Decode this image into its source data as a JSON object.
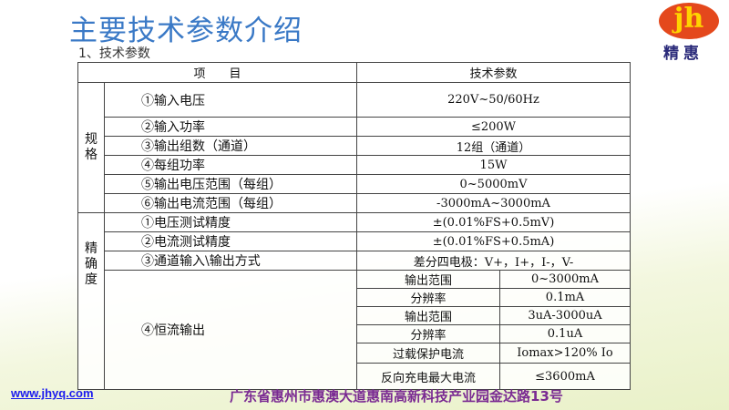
{
  "title": "主要技术参数介绍",
  "subtitle": "1、技术参数",
  "logo": {
    "text": "jh",
    "name": "精惠"
  },
  "table": {
    "headers": [
      "项　　目",
      "技术参数"
    ],
    "spec_label": "规格",
    "spec_rows": [
      {
        "item": "①输入电压",
        "value": "220V~50/60Hz"
      },
      {
        "item": "②输入功率",
        "value": "≤200W"
      },
      {
        "item": "③输出组数（通道）",
        "value": "12组（通道）"
      },
      {
        "item": "④每组功率",
        "value": "15W"
      },
      {
        "item": "⑤输出电压范围（每组）",
        "value": "0~5000mV"
      },
      {
        "item": "⑥输出电流范围（每组）",
        "value": "-3000mA~3000mA"
      }
    ],
    "precision_label": "精确度",
    "precision_rows": [
      {
        "item": "①电压测试精度",
        "value": "±(0.01%FS+0.5mV)"
      },
      {
        "item": "②电流测试精度",
        "value": "±(0.01%FS+0.5mA)"
      },
      {
        "item": "③通道输入\\输出方式",
        "value": "差分四电极：V+，I+，I-，V-"
      }
    ],
    "cc_item": "④恒流输出",
    "cc_rows": [
      {
        "name": "输出范围",
        "value": "0~3000mA"
      },
      {
        "name": "分辨率",
        "value": "0.1mA"
      },
      {
        "name": "输出范围",
        "value": "3uA-3000uA"
      },
      {
        "name": "分辨率",
        "value": "0.1uA"
      },
      {
        "name": "过载保护电流",
        "value": "Iomax>120% Io"
      },
      {
        "name": "反向充电最大电流",
        "value": "≤3600mA"
      }
    ]
  },
  "footer": {
    "website": "www.jhyq.com",
    "address": "广东省惠州市惠澳大道惠南高新科技产业园金达路13号"
  }
}
